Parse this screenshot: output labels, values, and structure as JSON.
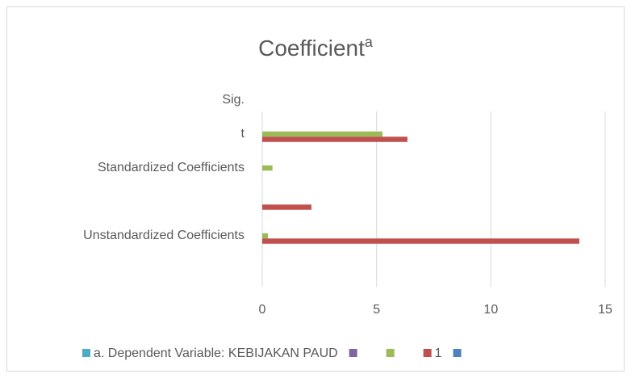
{
  "chart_data": {
    "type": "bar",
    "orientation": "horizontal",
    "title": "Coefficient",
    "title_superscript": "a",
    "categories": [
      null,
      "Unstandardized Coefficients",
      null,
      "Standardized Coefficients",
      "t",
      "Sig."
    ],
    "series": [
      {
        "name": "a. Dependent Variable: KEBIJAKAN PAUD",
        "color": "#4bacc6",
        "values": [
          null,
          null,
          null,
          null,
          null,
          null
        ]
      },
      {
        "name": null,
        "color": "#8064a2",
        "values": [
          null,
          null,
          null,
          null,
          null,
          null
        ]
      },
      {
        "name": null,
        "color": "#9bbb59",
        "values": [
          null,
          0.25,
          null,
          0.45,
          5.26,
          null
        ]
      },
      {
        "name": "1",
        "color": "#c0504d",
        "values": [
          null,
          13.87,
          2.15,
          null,
          6.35,
          null
        ]
      },
      {
        "name": null,
        "color": "#4f81bd",
        "values": [
          null,
          null,
          null,
          null,
          null,
          null
        ]
      }
    ],
    "xlim": [
      0,
      15
    ],
    "xticks": [
      0,
      5,
      10,
      15
    ],
    "grid": true,
    "legend": "bottom"
  }
}
